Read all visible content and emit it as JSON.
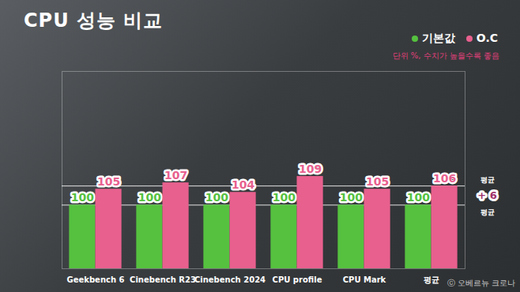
{
  "chart_data": {
    "type": "bar",
    "title": "CPU 성능 비교",
    "subtitle": "단위 %, 수치가 높을수록 좋음",
    "caption": "ⓒ 오베르뉴 크로나",
    "categories": [
      "Geekbench 6",
      "Cinebench R23",
      "Cinebench 2024",
      "CPU profile",
      "CPU Mark",
      "평균"
    ],
    "series": [
      {
        "name": "기본값",
        "color": "#55c13f",
        "values": [
          100,
          100,
          100,
          100,
          100,
          100
        ]
      },
      {
        "name": "O.C",
        "color": "#e8608e",
        "values": [
          105,
          107,
          104,
          109,
          105,
          106
        ]
      }
    ],
    "ylim": [
      80,
      142
    ],
    "yticks": [
      100,
      106
    ],
    "grid": true,
    "tick_labels": "x",
    "data_labels": true,
    "legend": "top-right",
    "annotations": [
      {
        "text": "평균",
        "y": 106
      },
      {
        "text": "+ 6"
      },
      {
        "text": "평균",
        "y": 100
      }
    ]
  }
}
